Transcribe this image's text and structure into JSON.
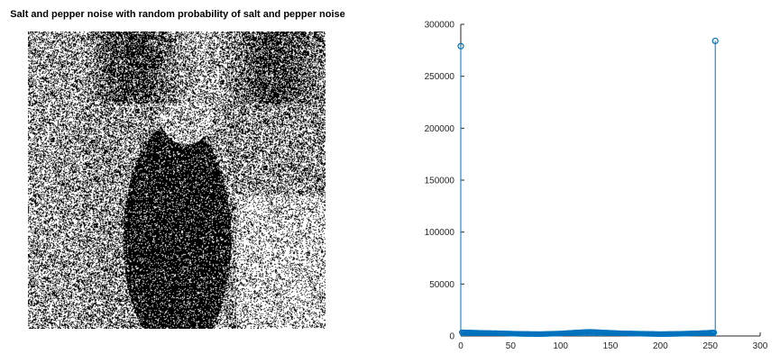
{
  "image_panel": {
    "title": "Salt and pepper noise with random probability of salt and pepper noise"
  },
  "chart_data": {
    "type": "stem",
    "title": "",
    "xlabel": "",
    "ylabel": "",
    "xlim": [
      0,
      300
    ],
    "ylim": [
      0,
      300000
    ],
    "xticks": [
      0,
      50,
      100,
      150,
      200,
      250,
      300
    ],
    "yticks": [
      0,
      50000,
      100000,
      150000,
      200000,
      250000,
      300000
    ],
    "grid": false,
    "color": "#0072bd",
    "x": [
      0,
      1,
      2,
      5,
      10,
      20,
      40,
      60,
      80,
      100,
      120,
      130,
      140,
      160,
      180,
      200,
      220,
      240,
      250,
      254,
      255
    ],
    "values": [
      279000,
      3500,
      3600,
      3400,
      3300,
      3000,
      2600,
      2000,
      1800,
      2400,
      3600,
      4000,
      3500,
      2600,
      2200,
      1800,
      2100,
      2700,
      3200,
      3300,
      284000
    ],
    "note_values": "bin 0 and bin 255 hold large spikes; intermediate bins hold roughly 2000-4000 counts"
  }
}
